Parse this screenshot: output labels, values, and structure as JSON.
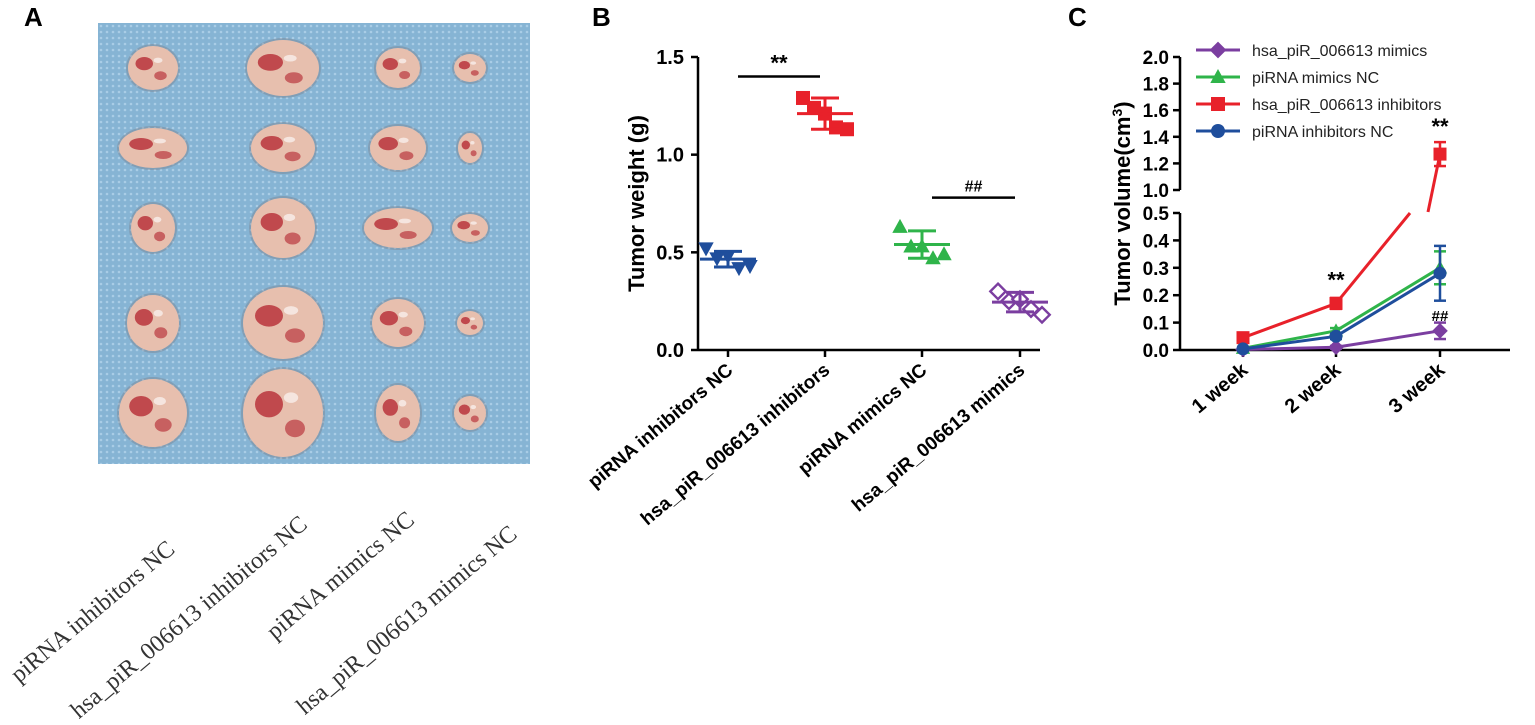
{
  "panels": {
    "a": "A",
    "b": "B",
    "c": "C"
  },
  "photo": {
    "description_icon": "tumor-photo",
    "group_labels": [
      "piRNA inhibitors NC",
      "hsa_piR_006613 inhibitors NC",
      "piRNA mimics NC",
      "hsa_piR_006613 mimics NC"
    ],
    "colors": {
      "background": "#88b6d6",
      "tumor": "#e7bfae",
      "blood": "#b3222c"
    }
  },
  "chart_data": [
    {
      "type": "scatter",
      "title": "",
      "ylabel": "Tumor weight (g)",
      "ylim": [
        0,
        1.5
      ],
      "yticks": [
        "0.0",
        "0.5",
        "1.0",
        "1.5"
      ],
      "categories": [
        "piRNA inhibitors NC",
        "hsa_piR_006613 inhibitors",
        "piRNA mimics NC",
        "hsa_piR_006613 mimics"
      ],
      "series": [
        {
          "name": "piRNA inhibitors NC",
          "color": "#1f4e9c",
          "marker": "triangle-down",
          "points": [
            0.51,
            0.49,
            0.47,
            0.44,
            0.42
          ],
          "mean": 0.465,
          "sd": 0.04
        },
        {
          "name": "hsa_piR_006613 inhibitors",
          "color": "#e8212a",
          "marker": "square",
          "points": [
            1.28,
            1.26,
            1.2,
            1.16,
            1.12
          ],
          "mean": 1.21,
          "sd": 0.08
        },
        {
          "name": "piRNA mimics NC",
          "color": "#2fb44a",
          "marker": "triangle-up",
          "points": [
            0.62,
            0.55,
            0.52,
            0.49,
            0.48
          ],
          "mean": 0.54,
          "sd": 0.07
        },
        {
          "name": "hsa_piR_006613 mimics",
          "color": "#7b3ea0",
          "marker": "diamond-open",
          "points": [
            0.29,
            0.27,
            0.25,
            0.23,
            0.17
          ],
          "mean": 0.245,
          "sd": 0.05
        }
      ],
      "annotations": [
        {
          "text": "**",
          "between": [
            0,
            1
          ],
          "y": 1.4
        },
        {
          "text": "##",
          "between": [
            2,
            3
          ],
          "y": 0.78
        }
      ]
    },
    {
      "type": "line",
      "ylabel": "Tumor volume(cm3)",
      "ylabel_main": "Tumor volume(cm",
      "ylabel_sup": "3",
      "ylabel_close": ")",
      "categories": [
        "1 week",
        "2 week",
        "3 week"
      ],
      "ylim_lower": [
        0,
        0.5
      ],
      "ylim_upper": [
        1.0,
        2.0
      ],
      "yticks_lower": [
        "0.0",
        "0.1",
        "0.2",
        "0.3",
        "0.4",
        "0.5"
      ],
      "yticks_upper": [
        "1.0",
        "1.2",
        "1.4",
        "1.6",
        "1.8",
        "2.0"
      ],
      "series": [
        {
          "name": "hsa_piR_006613 mimics",
          "color": "#7b3ea0",
          "marker": "diamond",
          "values": [
            0.002,
            0.01,
            0.07
          ],
          "err": [
            0,
            0.005,
            0.03
          ]
        },
        {
          "name": "piRNA mimics NC",
          "color": "#2fb44a",
          "marker": "triangle",
          "values": [
            0.006,
            0.07,
            0.3
          ],
          "err": [
            0,
            0.01,
            0.06
          ]
        },
        {
          "name": "hsa_piR_006613 inhibitors",
          "color": "#e8212a",
          "marker": "square",
          "values": [
            0.045,
            0.17,
            1.27
          ],
          "err": [
            0,
            0.02,
            0.09
          ]
        },
        {
          "name": "piRNA inhibitors NC",
          "color": "#1f4e9c",
          "marker": "circle",
          "values": [
            0.004,
            0.05,
            0.28
          ],
          "err": [
            0,
            0.01,
            0.1
          ]
        }
      ],
      "annotations": [
        {
          "text": "**",
          "at": "2 week"
        },
        {
          "text": "**",
          "at": "3 week"
        },
        {
          "text": "##",
          "at": "3 week"
        }
      ]
    }
  ]
}
